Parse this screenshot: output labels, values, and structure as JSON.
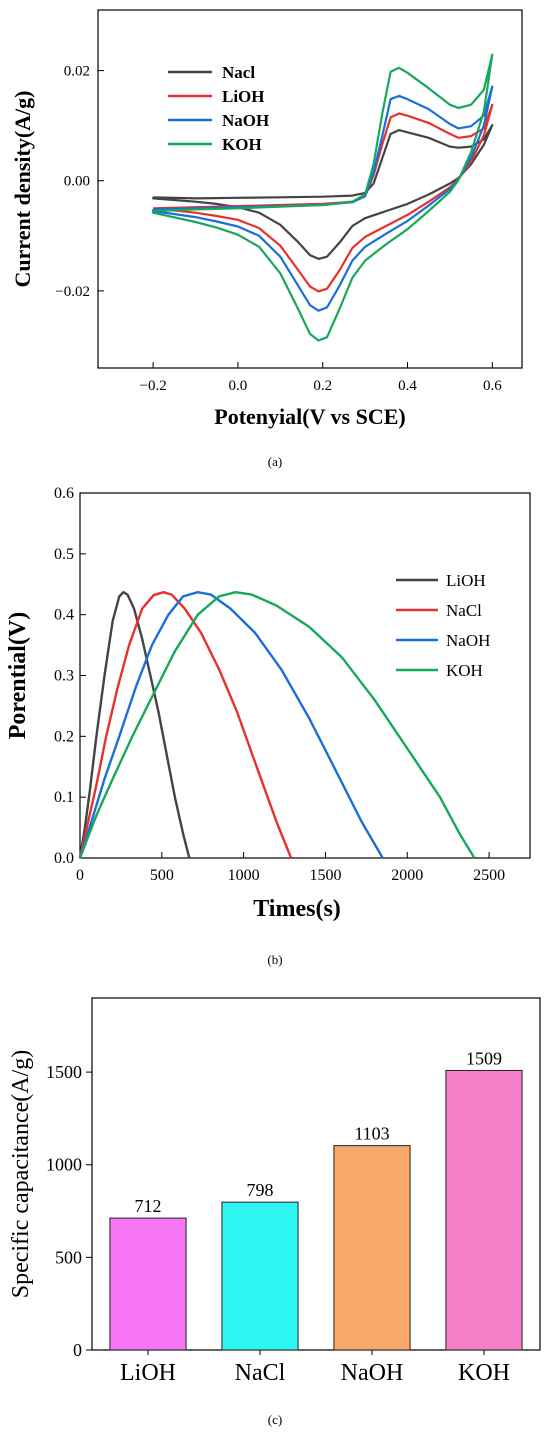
{
  "figure": {
    "panel_labels": [
      "(a)",
      "(b)",
      "(c)"
    ]
  },
  "chart_data": [
    {
      "type": "line",
      "panel": "a",
      "xlabel": "Potenyial(V vs SCE)",
      "ylabel": "Current density(A/g)",
      "xlim": [
        -0.33,
        0.67
      ],
      "ylim": [
        -0.034,
        0.031
      ],
      "xticks": [
        -0.2,
        0.0,
        0.2,
        0.4,
        0.6
      ],
      "xtick_labels": [
        "−0.2",
        "0.0",
        "0.2",
        "0.4",
        "0.6"
      ],
      "yticks": [
        -0.02,
        0.0,
        0.02
      ],
      "ytick_labels": [
        "−0.02",
        "0.00",
        "0.02"
      ],
      "legend_position": "top-left",
      "series": [
        {
          "name": "Nacl",
          "color": "#444444",
          "x": [
            -0.2,
            -0.1,
            0.0,
            0.1,
            0.2,
            0.27,
            0.3,
            0.32,
            0.34,
            0.36,
            0.38,
            0.4,
            0.45,
            0.5,
            0.52,
            0.55,
            0.58,
            0.6,
            0.58,
            0.55,
            0.52,
            0.5,
            0.45,
            0.4,
            0.35,
            0.3,
            0.27,
            0.24,
            0.21,
            0.19,
            0.17,
            0.14,
            0.1,
            0.05,
            0.0,
            -0.05,
            -0.1,
            -0.2
          ],
          "y": [
            -0.003,
            -0.0032,
            -0.0031,
            -0.003,
            -0.0029,
            -0.0027,
            -0.0022,
            -0.0005,
            0.004,
            0.0085,
            0.0092,
            0.0088,
            0.0078,
            0.0062,
            0.006,
            0.0062,
            0.0075,
            0.0101,
            0.0065,
            0.003,
            0.0005,
            -0.0005,
            -0.0025,
            -0.0042,
            -0.0055,
            -0.0068,
            -0.0082,
            -0.0112,
            -0.0138,
            -0.0142,
            -0.0135,
            -0.011,
            -0.008,
            -0.0058,
            -0.0048,
            -0.0042,
            -0.0038,
            -0.0032
          ]
        },
        {
          "name": "LiOH",
          "color": "#e8312f",
          "x": [
            -0.2,
            -0.1,
            0.0,
            0.1,
            0.2,
            0.27,
            0.3,
            0.32,
            0.34,
            0.36,
            0.38,
            0.4,
            0.45,
            0.5,
            0.52,
            0.55,
            0.58,
            0.6,
            0.58,
            0.55,
            0.52,
            0.5,
            0.45,
            0.4,
            0.35,
            0.3,
            0.27,
            0.24,
            0.21,
            0.19,
            0.17,
            0.14,
            0.1,
            0.05,
            0.0,
            -0.05,
            -0.1,
            -0.2
          ],
          "y": [
            -0.005,
            -0.0048,
            -0.0046,
            -0.0044,
            -0.0042,
            -0.0038,
            -0.0028,
            0.001,
            0.0065,
            0.0115,
            0.0122,
            0.0118,
            0.0105,
            0.0085,
            0.0078,
            0.0081,
            0.0095,
            0.0138,
            0.0082,
            0.0035,
            0.0003,
            -0.0012,
            -0.0038,
            -0.0062,
            -0.0082,
            -0.0102,
            -0.0122,
            -0.0162,
            -0.0196,
            -0.0201,
            -0.0192,
            -0.016,
            -0.0118,
            -0.0086,
            -0.0071,
            -0.0064,
            -0.0058,
            -0.005
          ]
        },
        {
          "name": "NaOH",
          "color": "#1a6fd8",
          "x": [
            -0.2,
            -0.1,
            0.0,
            0.1,
            0.2,
            0.27,
            0.3,
            0.32,
            0.34,
            0.36,
            0.38,
            0.4,
            0.45,
            0.5,
            0.52,
            0.55,
            0.58,
            0.6,
            0.58,
            0.55,
            0.52,
            0.5,
            0.45,
            0.4,
            0.35,
            0.3,
            0.27,
            0.24,
            0.21,
            0.19,
            0.17,
            0.14,
            0.1,
            0.05,
            0.0,
            -0.05,
            -0.1,
            -0.2
          ],
          "y": [
            -0.0052,
            -0.005,
            -0.0048,
            -0.0046,
            -0.0044,
            -0.0039,
            -0.0028,
            0.0015,
            0.008,
            0.0148,
            0.0154,
            0.0148,
            0.013,
            0.0103,
            0.0095,
            0.0099,
            0.0118,
            0.0171,
            0.01,
            0.0042,
            0.0002,
            -0.0015,
            -0.0045,
            -0.0073,
            -0.0096,
            -0.012,
            -0.0145,
            -0.019,
            -0.023,
            -0.0236,
            -0.0226,
            -0.0188,
            -0.0138,
            -0.01,
            -0.0083,
            -0.0074,
            -0.0066,
            -0.0055
          ]
        },
        {
          "name": "KOH",
          "color": "#17a85a",
          "x": [
            -0.2,
            -0.1,
            0.0,
            0.1,
            0.2,
            0.27,
            0.3,
            0.32,
            0.34,
            0.36,
            0.38,
            0.4,
            0.45,
            0.5,
            0.52,
            0.55,
            0.58,
            0.6,
            0.58,
            0.55,
            0.52,
            0.5,
            0.45,
            0.4,
            0.35,
            0.3,
            0.27,
            0.24,
            0.21,
            0.19,
            0.17,
            0.14,
            0.1,
            0.05,
            0.0,
            -0.05,
            -0.1,
            -0.2
          ],
          "y": [
            -0.0055,
            -0.0052,
            -0.005,
            -0.0047,
            -0.0044,
            -0.0038,
            -0.0025,
            0.003,
            0.012,
            0.0198,
            0.0205,
            0.0196,
            0.0168,
            0.0138,
            0.0132,
            0.0138,
            0.0165,
            0.0229,
            0.0125,
            0.0052,
            0.0001,
            -0.002,
            -0.0055,
            -0.0088,
            -0.0115,
            -0.0145,
            -0.0176,
            -0.0232,
            -0.0284,
            -0.029,
            -0.0278,
            -0.023,
            -0.0168,
            -0.012,
            -0.0098,
            -0.0085,
            -0.0075,
            -0.0058
          ]
        }
      ]
    },
    {
      "type": "line",
      "panel": "b",
      "xlabel": "Times(s)",
      "ylabel": "Porential(V)",
      "xlim": [
        0,
        2750
      ],
      "ylim": [
        0,
        0.6
      ],
      "xticks": [
        0,
        500,
        1000,
        1500,
        2000,
        2500
      ],
      "xtick_labels": [
        "0",
        "500",
        "1000",
        "1500",
        "2000",
        "2500"
      ],
      "yticks": [
        0,
        0.1,
        0.2,
        0.3,
        0.4,
        0.5,
        0.6
      ],
      "ytick_labels": [
        "0.0",
        "0.1",
        "0.2",
        "0.3",
        "0.4",
        "0.5",
        "0.6"
      ],
      "legend_position": "right",
      "series": [
        {
          "name": "LiOH",
          "color": "#444444",
          "x": [
            0,
            30,
            60,
            100,
            150,
            200,
            240,
            265,
            290,
            330,
            380,
            430,
            480,
            530,
            580,
            630,
            668
          ],
          "y": [
            0,
            0.05,
            0.11,
            0.2,
            0.3,
            0.39,
            0.43,
            0.437,
            0.433,
            0.41,
            0.36,
            0.3,
            0.24,
            0.17,
            0.1,
            0.04,
            0
          ]
        },
        {
          "name": "NaCl",
          "color": "#e8312f",
          "x": [
            0,
            50,
            100,
            160,
            230,
            300,
            380,
            450,
            510,
            560,
            640,
            740,
            850,
            960,
            1080,
            1200,
            1290
          ],
          "y": [
            0,
            0.06,
            0.12,
            0.2,
            0.28,
            0.35,
            0.41,
            0.432,
            0.437,
            0.433,
            0.41,
            0.37,
            0.31,
            0.24,
            0.15,
            0.06,
            0
          ]
        },
        {
          "name": "NaOH",
          "color": "#1a6fd8",
          "x": [
            0,
            70,
            150,
            240,
            340,
            440,
            540,
            630,
            720,
            800,
            920,
            1070,
            1230,
            1400,
            1570,
            1720,
            1850
          ],
          "y": [
            0,
            0.06,
            0.13,
            0.2,
            0.28,
            0.35,
            0.4,
            0.43,
            0.437,
            0.433,
            0.41,
            0.37,
            0.31,
            0.23,
            0.14,
            0.06,
            0
          ]
        },
        {
          "name": "KOH",
          "color": "#17a85a",
          "x": [
            0,
            100,
            200,
            320,
            450,
            580,
            720,
            850,
            950,
            1050,
            1200,
            1400,
            1600,
            1800,
            2000,
            2200,
            2320,
            2410
          ],
          "y": [
            0,
            0.07,
            0.13,
            0.2,
            0.27,
            0.34,
            0.4,
            0.43,
            0.437,
            0.433,
            0.415,
            0.38,
            0.33,
            0.26,
            0.18,
            0.1,
            0.04,
            0
          ]
        }
      ]
    },
    {
      "type": "bar",
      "panel": "c",
      "ylabel": "Specific capacitance(A/g)",
      "categories": [
        "LiOH",
        "NaCl",
        "NaOH",
        "KOH"
      ],
      "values": [
        712,
        798,
        1103,
        1509
      ],
      "value_labels": [
        "712",
        "798",
        "1103",
        "1509"
      ],
      "colors": [
        "#f575f5",
        "#2ef5f0",
        "#f7a86a",
        "#f57ec8"
      ],
      "ylim": [
        0,
        1900
      ],
      "yticks": [
        0,
        500,
        1000,
        1500
      ],
      "ytick_labels": [
        "0",
        "500",
        "1000",
        "1500"
      ]
    }
  ]
}
